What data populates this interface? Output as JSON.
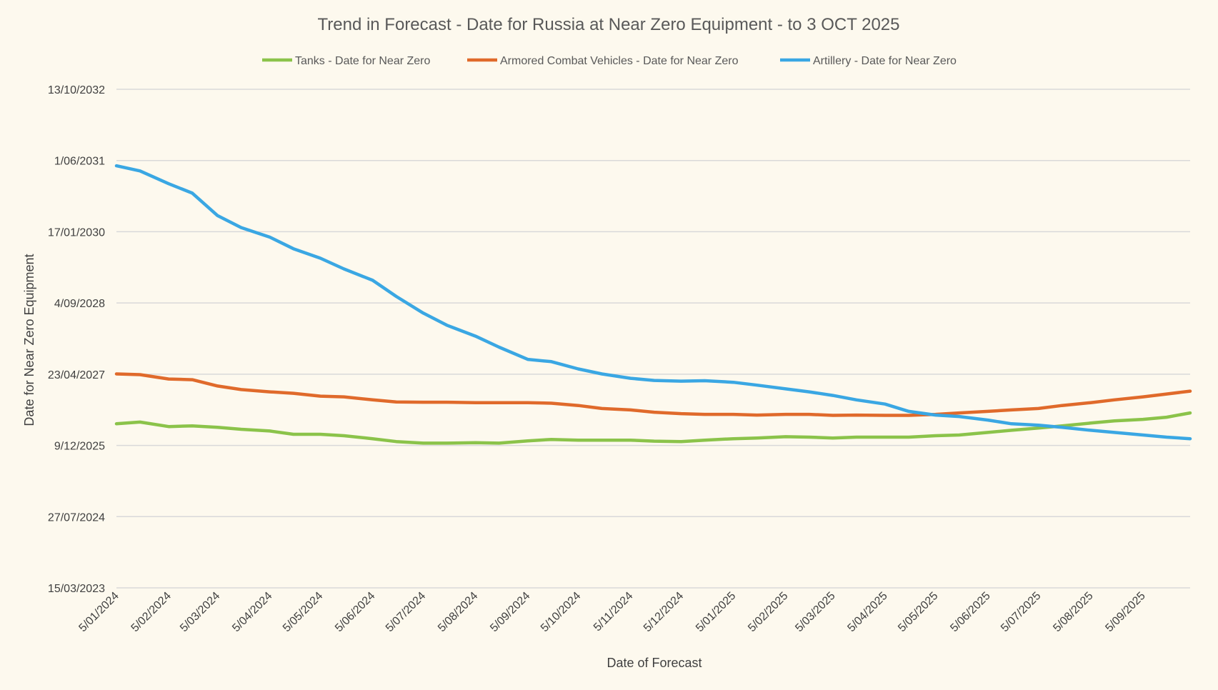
{
  "chart_data": {
    "type": "line",
    "title": "Trend in Forecast - Date for Russia at Near Zero Equipment - to 3 OCT 2025",
    "xlabel": "Date of Forecast",
    "ylabel": "Date for Near Zero Equipment",
    "x_range": [
      "2024-01-05",
      "2025-10-03"
    ],
    "x_tick_dates": [
      "2024-01-05",
      "2024-02-05",
      "2024-03-05",
      "2024-04-05",
      "2024-05-05",
      "2024-06-05",
      "2024-07-05",
      "2024-08-05",
      "2024-09-05",
      "2024-10-05",
      "2024-11-05",
      "2024-12-05",
      "2025-01-05",
      "2025-02-05",
      "2025-03-05",
      "2025-04-05",
      "2025-05-05",
      "2025-06-05",
      "2025-07-05",
      "2025-08-05",
      "2025-09-05"
    ],
    "x_tick_labels": [
      "5/01/2024",
      "5/02/2024",
      "5/03/2024",
      "5/04/2024",
      "5/05/2024",
      "5/06/2024",
      "5/07/2024",
      "5/08/2024",
      "5/09/2024",
      "5/10/2024",
      "5/11/2024",
      "5/12/2024",
      "5/01/2025",
      "5/02/2025",
      "5/03/2025",
      "5/04/2025",
      "5/05/2025",
      "5/06/2025",
      "5/07/2025",
      "5/08/2025",
      "5/09/2025"
    ],
    "y_range": [
      "2023-03-15",
      "2032-10-13"
    ],
    "y_tick_dates": [
      "2023-03-15",
      "2024-07-27",
      "2025-12-09",
      "2027-04-23",
      "2028-09-04",
      "2030-01-17",
      "2031-06-01",
      "2032-10-13"
    ],
    "y_tick_labels": [
      "15/03/2023",
      "27/07/2024",
      "9/12/2025",
      "23/04/2027",
      "4/09/2028",
      "17/01/2030",
      "1/06/2031",
      "13/10/2032"
    ],
    "legend_position": "top",
    "grid": true,
    "series": [
      {
        "name": "Tanks - Date for Near Zero",
        "color": "#8bc34a",
        "points": [
          [
            "2024-01-05",
            "2026-05-10"
          ],
          [
            "2024-01-19",
            "2026-05-22"
          ],
          [
            "2024-02-05",
            "2026-04-20"
          ],
          [
            "2024-02-19",
            "2026-04-25"
          ],
          [
            "2024-03-05",
            "2026-04-15"
          ],
          [
            "2024-03-19",
            "2026-04-01"
          ],
          [
            "2024-04-05",
            "2026-03-20"
          ],
          [
            "2024-04-19",
            "2026-02-25"
          ],
          [
            "2024-05-05",
            "2026-02-25"
          ],
          [
            "2024-05-19",
            "2026-02-15"
          ],
          [
            "2024-06-05",
            "2026-01-25"
          ],
          [
            "2024-06-19",
            "2026-01-05"
          ],
          [
            "2024-07-05",
            "2025-12-25"
          ],
          [
            "2024-07-19",
            "2025-12-25"
          ],
          [
            "2024-08-05",
            "2025-12-28"
          ],
          [
            "2024-08-19",
            "2025-12-25"
          ],
          [
            "2024-09-05",
            "2026-01-10"
          ],
          [
            "2024-09-19",
            "2026-01-20"
          ],
          [
            "2024-10-05",
            "2026-01-15"
          ],
          [
            "2024-10-19",
            "2026-01-15"
          ],
          [
            "2024-11-05",
            "2026-01-15"
          ],
          [
            "2024-11-19",
            "2026-01-08"
          ],
          [
            "2024-12-05",
            "2026-01-05"
          ],
          [
            "2024-12-19",
            "2026-01-15"
          ],
          [
            "2025-01-05",
            "2026-01-25"
          ],
          [
            "2025-01-19",
            "2026-01-30"
          ],
          [
            "2025-02-05",
            "2026-02-08"
          ],
          [
            "2025-02-19",
            "2026-02-05"
          ],
          [
            "2025-03-05",
            "2026-01-30"
          ],
          [
            "2025-03-19",
            "2026-02-05"
          ],
          [
            "2025-04-05",
            "2026-02-05"
          ],
          [
            "2025-04-19",
            "2026-02-05"
          ],
          [
            "2025-05-05",
            "2026-02-15"
          ],
          [
            "2025-05-19",
            "2026-02-20"
          ],
          [
            "2025-06-05",
            "2026-03-10"
          ],
          [
            "2025-06-19",
            "2026-03-25"
          ],
          [
            "2025-07-05",
            "2026-04-10"
          ],
          [
            "2025-07-19",
            "2026-04-25"
          ],
          [
            "2025-08-05",
            "2026-05-15"
          ],
          [
            "2025-08-19",
            "2026-05-30"
          ],
          [
            "2025-09-05",
            "2026-06-10"
          ],
          [
            "2025-09-19",
            "2026-06-25"
          ],
          [
            "2025-10-03",
            "2026-07-25"
          ]
        ]
      },
      {
        "name": "Armored Combat Vehicles - Date for Near Zero",
        "color": "#e06a2b",
        "points": [
          [
            "2024-01-05",
            "2027-04-25"
          ],
          [
            "2024-01-19",
            "2027-04-20"
          ],
          [
            "2024-02-05",
            "2027-03-20"
          ],
          [
            "2024-02-19",
            "2027-03-15"
          ],
          [
            "2024-03-05",
            "2027-01-30"
          ],
          [
            "2024-03-19",
            "2027-01-05"
          ],
          [
            "2024-04-05",
            "2026-12-20"
          ],
          [
            "2024-04-19",
            "2026-12-10"
          ],
          [
            "2024-05-05",
            "2026-11-20"
          ],
          [
            "2024-05-19",
            "2026-11-15"
          ],
          [
            "2024-06-05",
            "2026-10-25"
          ],
          [
            "2024-06-19",
            "2026-10-10"
          ],
          [
            "2024-07-05",
            "2026-10-08"
          ],
          [
            "2024-07-19",
            "2026-10-08"
          ],
          [
            "2024-08-05",
            "2026-10-05"
          ],
          [
            "2024-08-19",
            "2026-10-05"
          ],
          [
            "2024-09-05",
            "2026-10-05"
          ],
          [
            "2024-09-19",
            "2026-10-01"
          ],
          [
            "2024-10-05",
            "2026-09-15"
          ],
          [
            "2024-10-19",
            "2026-08-25"
          ],
          [
            "2024-11-05",
            "2026-08-15"
          ],
          [
            "2024-11-19",
            "2026-07-30"
          ],
          [
            "2024-12-05",
            "2026-07-20"
          ],
          [
            "2024-12-19",
            "2026-07-15"
          ],
          [
            "2025-01-05",
            "2026-07-15"
          ],
          [
            "2025-01-19",
            "2026-07-10"
          ],
          [
            "2025-02-05",
            "2026-07-15"
          ],
          [
            "2025-02-19",
            "2026-07-15"
          ],
          [
            "2025-03-05",
            "2026-07-08"
          ],
          [
            "2025-03-19",
            "2026-07-10"
          ],
          [
            "2025-04-05",
            "2026-07-08"
          ],
          [
            "2025-04-19",
            "2026-07-08"
          ],
          [
            "2025-05-05",
            "2026-07-15"
          ],
          [
            "2025-05-19",
            "2026-07-25"
          ],
          [
            "2025-06-05",
            "2026-08-05"
          ],
          [
            "2025-06-19",
            "2026-08-15"
          ],
          [
            "2025-07-05",
            "2026-08-25"
          ],
          [
            "2025-07-19",
            "2026-09-15"
          ],
          [
            "2025-08-05",
            "2026-10-05"
          ],
          [
            "2025-08-19",
            "2026-10-25"
          ],
          [
            "2025-09-05",
            "2026-11-15"
          ],
          [
            "2025-09-19",
            "2026-12-05"
          ],
          [
            "2025-10-03",
            "2026-12-25"
          ]
        ]
      },
      {
        "name": "Artillery - Date for Near Zero",
        "color": "#3aa7e3",
        "points": [
          [
            "2024-01-05",
            "2031-04-25"
          ],
          [
            "2024-01-19",
            "2031-03-20"
          ],
          [
            "2024-02-05",
            "2030-12-20"
          ],
          [
            "2024-02-19",
            "2030-10-15"
          ],
          [
            "2024-03-05",
            "2030-05-10"
          ],
          [
            "2024-03-19",
            "2030-02-15"
          ],
          [
            "2024-04-05",
            "2029-12-10"
          ],
          [
            "2024-04-19",
            "2029-09-20"
          ],
          [
            "2024-05-05",
            "2029-07-15"
          ],
          [
            "2024-05-19",
            "2029-05-01"
          ],
          [
            "2024-06-05",
            "2029-02-10"
          ],
          [
            "2024-06-19",
            "2028-10-20"
          ],
          [
            "2024-07-05",
            "2028-06-25"
          ],
          [
            "2024-07-19",
            "2028-04-01"
          ],
          [
            "2024-08-05",
            "2028-01-15"
          ],
          [
            "2024-08-19",
            "2027-10-30"
          ],
          [
            "2024-09-05",
            "2027-08-05"
          ],
          [
            "2024-09-19",
            "2027-07-20"
          ],
          [
            "2024-10-05",
            "2027-05-30"
          ],
          [
            "2024-10-19",
            "2027-04-25"
          ],
          [
            "2024-11-05",
            "2027-03-25"
          ],
          [
            "2024-11-19",
            "2027-03-10"
          ],
          [
            "2024-12-05",
            "2027-03-05"
          ],
          [
            "2024-12-19",
            "2027-03-08"
          ],
          [
            "2025-01-05",
            "2027-02-25"
          ],
          [
            "2025-01-19",
            "2027-02-05"
          ],
          [
            "2025-02-05",
            "2027-01-10"
          ],
          [
            "2025-02-19",
            "2026-12-20"
          ],
          [
            "2025-03-05",
            "2026-11-25"
          ],
          [
            "2025-03-19",
            "2026-10-25"
          ],
          [
            "2025-04-05",
            "2026-09-25"
          ],
          [
            "2025-04-19",
            "2026-08-05"
          ],
          [
            "2025-05-05",
            "2026-07-10"
          ],
          [
            "2025-05-19",
            "2026-06-30"
          ],
          [
            "2025-06-05",
            "2026-06-05"
          ],
          [
            "2025-06-19",
            "2026-05-10"
          ],
          [
            "2025-07-05",
            "2026-04-30"
          ],
          [
            "2025-07-19",
            "2026-04-15"
          ],
          [
            "2025-08-05",
            "2026-03-25"
          ],
          [
            "2025-08-19",
            "2026-03-10"
          ],
          [
            "2025-09-05",
            "2026-02-20"
          ],
          [
            "2025-09-19",
            "2026-02-05"
          ],
          [
            "2025-10-03",
            "2026-01-25"
          ]
        ]
      }
    ]
  }
}
